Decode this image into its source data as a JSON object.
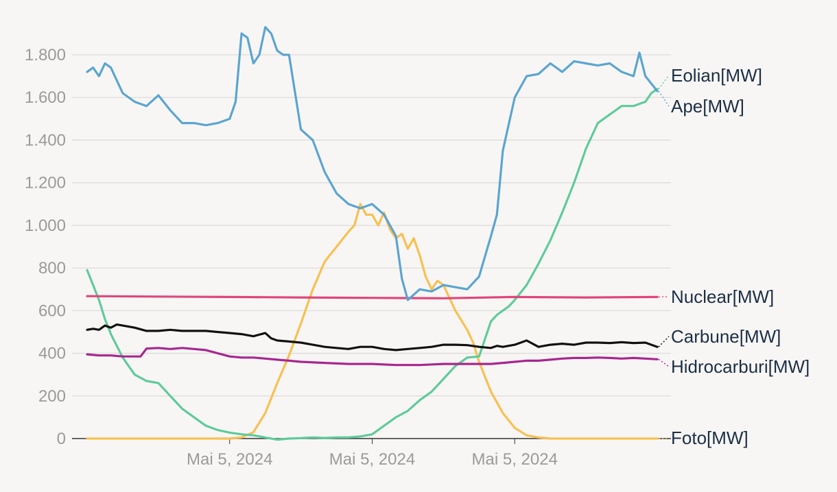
{
  "chart_data": {
    "type": "line",
    "title": "",
    "xlabel": "",
    "ylabel": "",
    "ylim": [
      0,
      1900
    ],
    "y_ticks": [
      0,
      200,
      400,
      600,
      800,
      1000,
      1200,
      1400,
      1600,
      1800
    ],
    "y_tick_labels": [
      "0",
      "200",
      "400",
      "600",
      "800",
      "1.000",
      "1.200",
      "1.400",
      "1.600",
      "1.800"
    ],
    "x_range": [
      0,
      24
    ],
    "x_ticks": [
      6,
      12,
      18
    ],
    "x_tick_labels": [
      "Mai 5, 2024",
      "Mai 5, 2024",
      "Mai 5, 2024"
    ],
    "grid": true,
    "legend": "direct labels at right end of lines",
    "series": [
      {
        "name": "Eolian[MW]",
        "color": "#5ecb9a",
        "x": [
          0,
          0.25,
          0.5,
          0.75,
          1,
          1.5,
          2,
          2.5,
          3,
          3.5,
          4,
          4.5,
          5,
          5.5,
          6,
          6.5,
          7,
          7.5,
          8,
          8.5,
          9,
          9.5,
          10,
          10.5,
          11,
          11.5,
          12,
          12.5,
          13,
          13.5,
          14,
          14.5,
          15,
          15.5,
          16,
          16.5,
          17,
          17.25,
          17.5,
          17.75,
          18,
          18.5,
          19,
          19.5,
          20,
          20.5,
          21,
          21.5,
          22,
          22.5,
          23,
          23.5,
          23.75,
          24
        ],
        "values": [
          790,
          720,
          650,
          560,
          490,
          380,
          300,
          270,
          260,
          200,
          140,
          100,
          60,
          40,
          28,
          20,
          15,
          5,
          -5,
          0,
          2,
          5,
          3,
          5,
          5,
          10,
          20,
          60,
          100,
          130,
          180,
          220,
          280,
          340,
          380,
          385,
          550,
          580,
          600,
          620,
          650,
          720,
          820,
          930,
          1060,
          1200,
          1360,
          1480,
          1520,
          1560,
          1560,
          1580,
          1620,
          1640
        ]
      },
      {
        "name": "Ape[MW]",
        "color": "#5aa5d0",
        "x": [
          0,
          0.25,
          0.5,
          0.75,
          1,
          1.5,
          2,
          2.5,
          3,
          3.5,
          4,
          4.5,
          5,
          5.5,
          6,
          6.25,
          6.5,
          6.75,
          7,
          7.25,
          7.5,
          7.75,
          8,
          8.25,
          8.5,
          9,
          9.5,
          10,
          10.5,
          11,
          11.5,
          12,
          12.5,
          13,
          13.25,
          13.5,
          14,
          14.5,
          15,
          15.5,
          16,
          16.5,
          17,
          17.25,
          17.5,
          18,
          18.5,
          19,
          19.5,
          20,
          20.5,
          21,
          21.5,
          22,
          22.5,
          23,
          23.25,
          23.5,
          24
        ],
        "values": [
          1720,
          1740,
          1700,
          1760,
          1740,
          1620,
          1580,
          1560,
          1610,
          1540,
          1480,
          1480,
          1470,
          1480,
          1500,
          1580,
          1900,
          1880,
          1760,
          1800,
          1930,
          1900,
          1820,
          1800,
          1800,
          1450,
          1400,
          1250,
          1150,
          1100,
          1080,
          1100,
          1050,
          950,
          750,
          650,
          700,
          690,
          720,
          710,
          700,
          760,
          950,
          1050,
          1350,
          1600,
          1700,
          1710,
          1760,
          1720,
          1770,
          1760,
          1750,
          1760,
          1720,
          1700,
          1810,
          1700,
          1630
        ]
      },
      {
        "name": "Nuclear[MW]",
        "color": "#e0457b",
        "x": [
          0,
          3,
          6,
          9,
          12,
          15,
          18,
          21,
          24
        ],
        "values": [
          668,
          666,
          664,
          662,
          660,
          658,
          664,
          662,
          664
        ]
      },
      {
        "name": "Carbune[MW]",
        "color": "#111111",
        "x": [
          0,
          0.25,
          0.5,
          0.75,
          1,
          1.25,
          1.5,
          2,
          2.5,
          3,
          3.5,
          4,
          4.5,
          5,
          5.5,
          6,
          6.5,
          7,
          7.5,
          7.75,
          8,
          8.5,
          9,
          9.5,
          10,
          10.5,
          11,
          11.5,
          12,
          12.5,
          13,
          13.5,
          14,
          14.5,
          15,
          15.5,
          16,
          16.5,
          17,
          17.25,
          17.5,
          18,
          18.5,
          19,
          19.5,
          20,
          20.5,
          21,
          21.5,
          22,
          22.5,
          23,
          23.5,
          24
        ],
        "values": [
          510,
          515,
          510,
          530,
          520,
          535,
          530,
          520,
          505,
          505,
          510,
          505,
          505,
          505,
          500,
          495,
          490,
          480,
          495,
          470,
          460,
          455,
          450,
          440,
          430,
          425,
          420,
          430,
          430,
          420,
          415,
          420,
          425,
          430,
          440,
          440,
          438,
          430,
          425,
          435,
          430,
          440,
          460,
          430,
          440,
          445,
          440,
          450,
          450,
          448,
          452,
          448,
          450,
          430
        ]
      },
      {
        "name": "Hidrocarburi[MW]",
        "color": "#a8268e",
        "x": [
          0,
          0.5,
          1,
          1.5,
          2,
          2.25,
          2.5,
          3,
          3.5,
          4,
          4.5,
          5,
          5.5,
          6,
          6.5,
          7,
          7.5,
          8,
          8.5,
          9,
          10,
          11,
          12,
          13,
          14,
          15,
          16,
          17,
          17.5,
          18,
          18.5,
          19,
          19.5,
          20,
          20.5,
          21,
          21.5,
          22,
          22.5,
          23,
          23.5,
          24
        ],
        "values": [
          395,
          390,
          390,
          385,
          385,
          385,
          422,
          425,
          420,
          425,
          420,
          415,
          400,
          385,
          380,
          380,
          375,
          370,
          365,
          360,
          355,
          350,
          350,
          345,
          345,
          350,
          350,
          350,
          355,
          360,
          365,
          365,
          370,
          375,
          378,
          378,
          380,
          378,
          375,
          378,
          375,
          372
        ]
      },
      {
        "name": "Foto[MW]",
        "color": "#f8c050",
        "x": [
          0,
          5,
          6,
          6.5,
          7,
          7.5,
          8,
          8.5,
          9,
          9.5,
          10,
          10.5,
          11,
          11.25,
          11.5,
          11.75,
          12,
          12.25,
          12.5,
          12.75,
          13,
          13.25,
          13.5,
          13.75,
          14,
          14.25,
          14.5,
          14.75,
          15,
          15.5,
          16,
          16.25,
          16.5,
          17,
          17.5,
          18,
          18.5,
          19,
          19.5,
          20,
          20.5,
          21,
          22,
          23,
          24
        ],
        "values": [
          0,
          0,
          0,
          5,
          30,
          120,
          260,
          390,
          540,
          700,
          830,
          900,
          970,
          1000,
          1100,
          1050,
          1050,
          1000,
          1060,
          980,
          940,
          960,
          890,
          940,
          860,
          760,
          700,
          740,
          720,
          600,
          510,
          450,
          360,
          220,
          120,
          50,
          15,
          5,
          0,
          0,
          0,
          0,
          0,
          0,
          0
        ]
      }
    ]
  }
}
